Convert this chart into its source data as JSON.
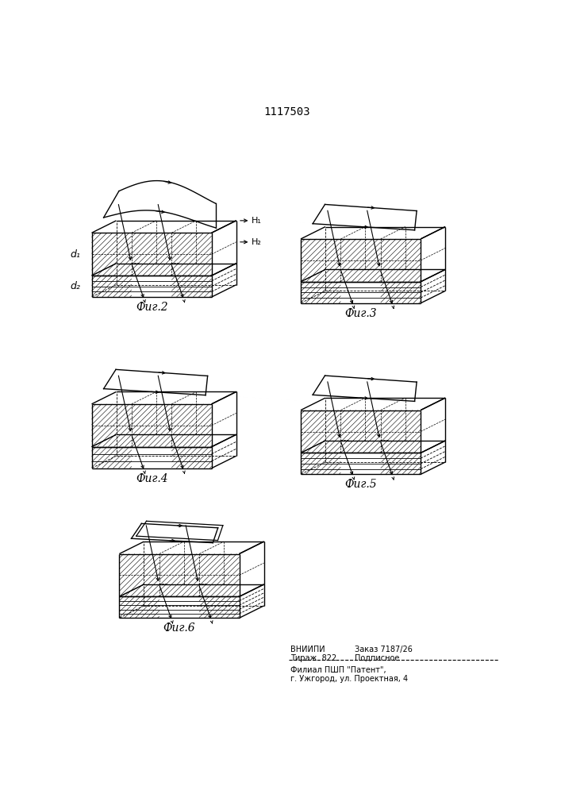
{
  "title": "1117503",
  "bg_color": "#ffffff",
  "line_color": "#000000",
  "fig_labels": [
    "Фиг.2",
    "Фиг.3",
    "Фиг.4",
    "Фиг.5",
    "Фиг.6"
  ],
  "footer": {
    "vniipи": "ВНИИПИ",
    "zakaz_label": "Заказ 7187/26",
    "tirazh_label": "Тираж  822",
    "podpisnoe": "Подписное",
    "filial": "Филиал ПШП \"Патент\",",
    "address": "г. Ужгород, ул. Проектная, 4"
  }
}
